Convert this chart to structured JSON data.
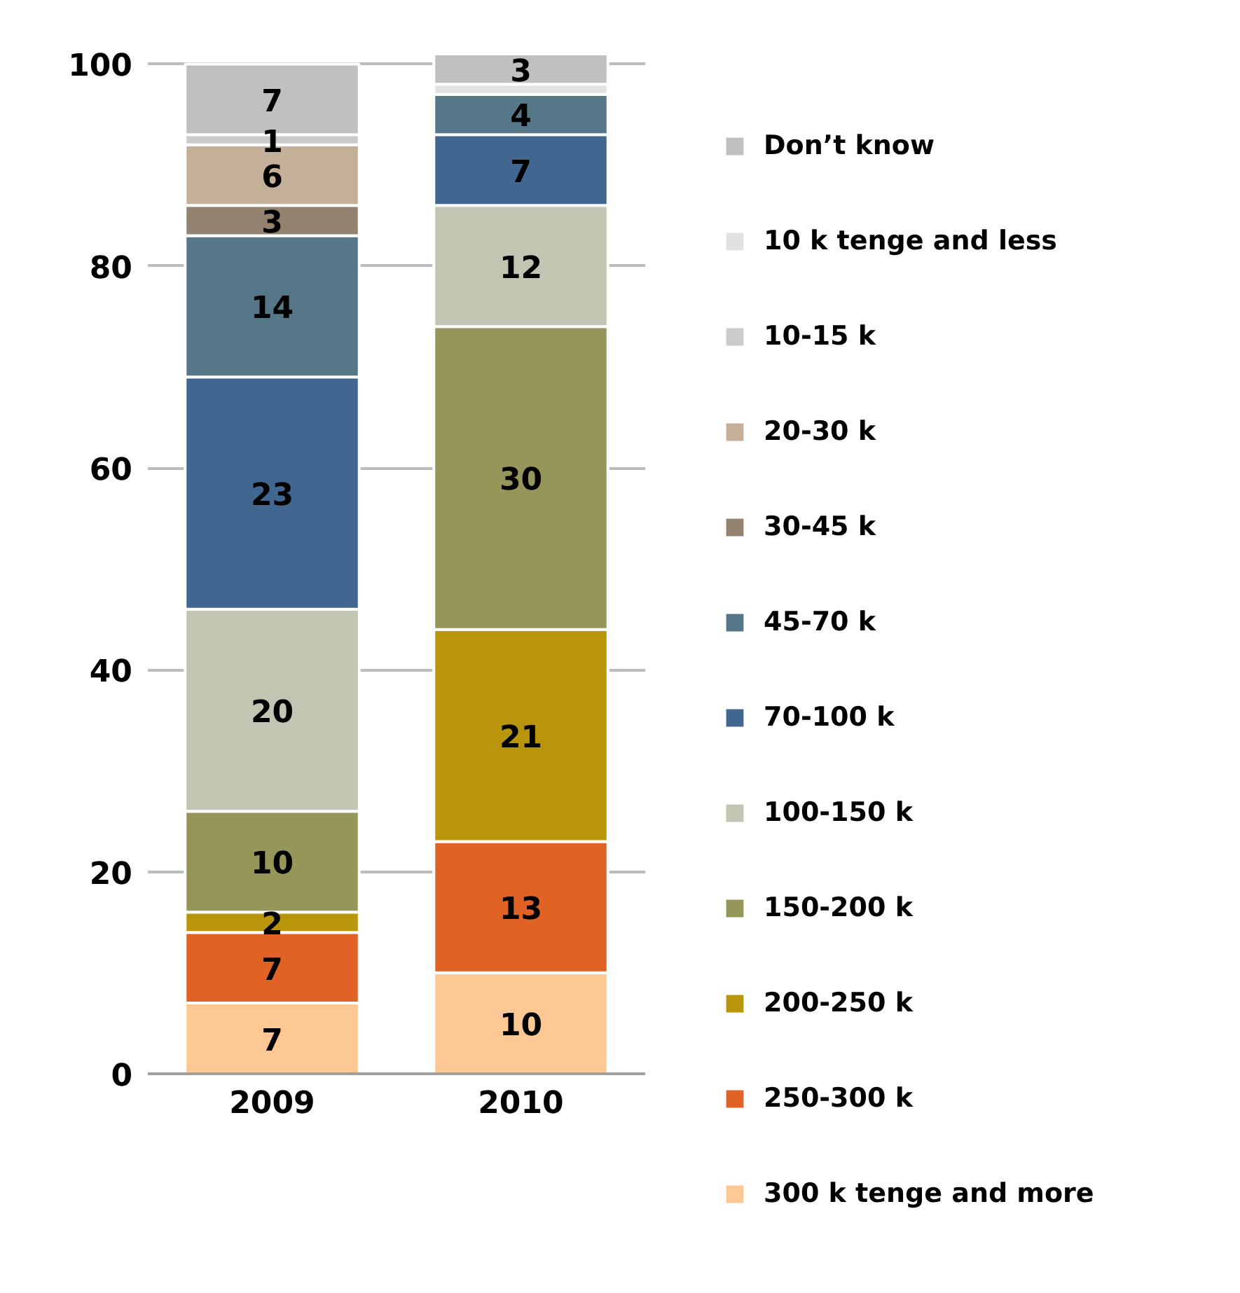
{
  "chart_data": {
    "type": "bar",
    "stacked": true,
    "categories": [
      "2009",
      "2010"
    ],
    "series": [
      {
        "name": "300 k tenge and more",
        "color": "#fdc893",
        "values": [
          7,
          10
        ]
      },
      {
        "name": "250-300 k",
        "color": "#e06224",
        "values": [
          7,
          13
        ]
      },
      {
        "name": "200-250 k",
        "color": "#b8950a",
        "values": [
          2,
          21
        ]
      },
      {
        "name": "150-200 k",
        "color": "#959659",
        "values": [
          10,
          30
        ]
      },
      {
        "name": "100-150 k",
        "color": "#c0c6b2",
        "values": [
          20,
          12
        ]
      },
      {
        "name": "70-100 k",
        "color": "#416791",
        "values": [
          23,
          7
        ]
      },
      {
        "name": "45-70 k",
        "color": "#567787",
        "values": [
          14,
          4
        ]
      },
      {
        "name": "30-45 k",
        "color": "#948270",
        "values": [
          3,
          null
        ]
      },
      {
        "name": "20-30 k",
        "color": "#c4af99",
        "values": [
          6,
          null
        ]
      },
      {
        "name": "10-15 k",
        "color": "#cbcbcb",
        "values": [
          1,
          null
        ]
      },
      {
        "name": "10 k tenge and less",
        "color": "#e2e2e2",
        "values": [
          null,
          1
        ],
        "value_labels": [
          null,
          null
        ]
      },
      {
        "name": "Don’t know",
        "color": "#c0c0c0",
        "values": [
          7,
          3
        ]
      }
    ],
    "ylim": [
      0,
      101
    ],
    "yticks": [
      0,
      20,
      40,
      60,
      80,
      100
    ],
    "grid": "y",
    "legend": "right",
    "data_labels": true
  }
}
